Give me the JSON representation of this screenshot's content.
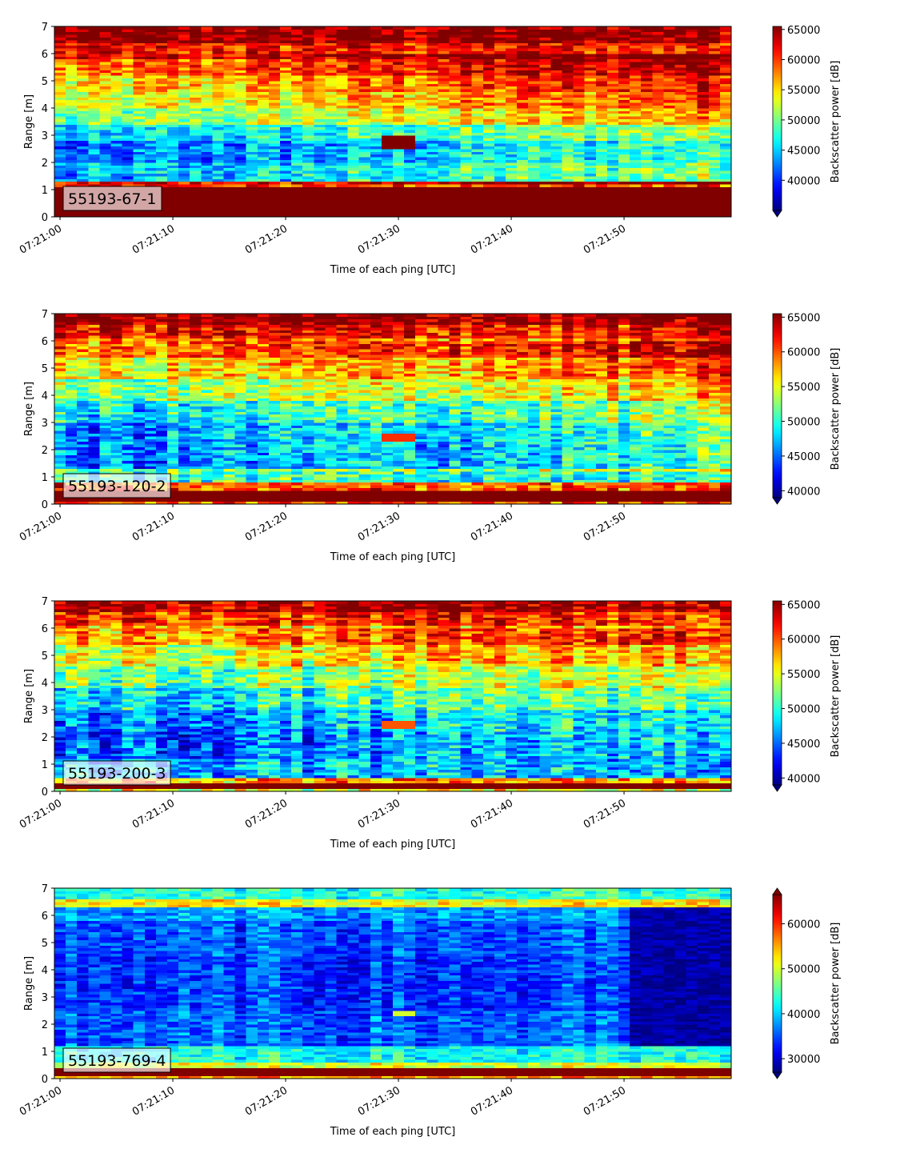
{
  "figure": {
    "background": "#ffffff"
  },
  "chart_data": [
    {
      "type": "heatmap",
      "label": "55193-67-1",
      "xlabel": "Time of each ping [UTC]",
      "ylabel": "Range [m]",
      "xticks": [
        "07:21:00",
        "07:21:10",
        "07:21:20",
        "07:21:30",
        "07:21:40",
        "07:21:50"
      ],
      "yticks": [
        0,
        1,
        2,
        3,
        4,
        5,
        6,
        7
      ],
      "ylim": [
        0,
        7
      ],
      "xlim_seconds": [
        -0.5,
        59.5
      ],
      "colorbar": {
        "label": "Backscatter power [dB]",
        "min": 35000,
        "max": 65500,
        "ticks": [
          40000,
          45000,
          50000,
          55000,
          60000,
          65000
        ],
        "extend": "min"
      },
      "profile": {
        "description": "strong near-surface band 0.2-1.1 m, low values 1.3-3.3 m in first half, rising to high values near 6-7 m",
        "rows_by_range_m": [
          [
            0.0,
            0.2,
            65500
          ],
          [
            0.2,
            1.1,
            65500
          ],
          [
            1.1,
            1.3,
            60000
          ],
          [
            1.3,
            2.0,
            43000
          ],
          [
            2.0,
            2.8,
            41000
          ],
          [
            2.8,
            3.4,
            44000
          ],
          [
            3.4,
            4.0,
            49000
          ],
          [
            4.0,
            4.6,
            52000
          ],
          [
            4.6,
            5.2,
            54000
          ],
          [
            5.2,
            5.8,
            57000
          ],
          [
            5.8,
            6.4,
            61000
          ],
          [
            6.4,
            7.0,
            65000
          ]
        ],
        "trend_late_half": 8000,
        "anomaly": {
          "t_start": 29,
          "t_end": 32,
          "r_start": 2.55,
          "r_end": 3.0,
          "value": 65500
        }
      }
    },
    {
      "type": "heatmap",
      "label": "55193-120-2",
      "xlabel": "Time of each ping [UTC]",
      "ylabel": "Range [m]",
      "xticks": [
        "07:21:00",
        "07:21:10",
        "07:21:20",
        "07:21:30",
        "07:21:40",
        "07:21:50"
      ],
      "yticks": [
        0,
        1,
        2,
        3,
        4,
        5,
        6,
        7
      ],
      "ylim": [
        0,
        7
      ],
      "xlim_seconds": [
        -0.5,
        59.5
      ],
      "colorbar": {
        "label": "Backscatter power [dB]",
        "min": 39000,
        "max": 65500,
        "ticks": [
          40000,
          45000,
          50000,
          55000,
          60000,
          65000
        ],
        "extend": "min"
      },
      "profile": {
        "rows_by_range_m": [
          [
            0.0,
            0.1,
            60000
          ],
          [
            0.1,
            0.55,
            65500
          ],
          [
            0.55,
            0.8,
            60000
          ],
          [
            0.8,
            1.3,
            50000
          ],
          [
            1.3,
            2.2,
            45000
          ],
          [
            2.2,
            3.0,
            45500
          ],
          [
            3.0,
            3.8,
            48000
          ],
          [
            3.8,
            4.6,
            52000
          ],
          [
            4.6,
            5.4,
            55000
          ],
          [
            5.4,
            6.1,
            58500
          ],
          [
            6.1,
            6.6,
            62000
          ],
          [
            6.6,
            7.0,
            65000
          ]
        ],
        "trend_late_half": 5000,
        "anomaly": {
          "t_start": 29,
          "t_end": 32,
          "r_start": 2.35,
          "r_end": 2.65,
          "value": 61000
        }
      }
    },
    {
      "type": "heatmap",
      "label": "55193-200-3",
      "xlabel": "Time of each ping [UTC]",
      "ylabel": "Range [m]",
      "xticks": [
        "07:21:00",
        "07:21:10",
        "07:21:20",
        "07:21:30",
        "07:21:40",
        "07:21:50"
      ],
      "yticks": [
        0,
        1,
        2,
        3,
        4,
        5,
        6,
        7
      ],
      "ylim": [
        0,
        7
      ],
      "xlim_seconds": [
        -0.5,
        59.5
      ],
      "colorbar": {
        "label": "Backscatter power [dB]",
        "min": 39000,
        "max": 65500,
        "ticks": [
          40000,
          45000,
          50000,
          55000,
          60000,
          65000
        ],
        "extend": "min"
      },
      "profile": {
        "rows_by_range_m": [
          [
            0.0,
            0.1,
            55000
          ],
          [
            0.1,
            0.35,
            65500
          ],
          [
            0.35,
            0.55,
            58000
          ],
          [
            0.55,
            1.2,
            47000
          ],
          [
            1.2,
            2.2,
            44000
          ],
          [
            2.2,
            3.0,
            45000
          ],
          [
            3.0,
            3.8,
            48000
          ],
          [
            3.8,
            4.6,
            51000
          ],
          [
            4.6,
            5.4,
            54000
          ],
          [
            5.4,
            6.1,
            57500
          ],
          [
            6.1,
            6.6,
            61000
          ],
          [
            6.6,
            7.0,
            64500
          ]
        ],
        "trend_late_half": 4500,
        "anomaly": {
          "t_start": 29,
          "t_end": 32,
          "r_start": 2.35,
          "r_end": 2.6,
          "value": 60000
        }
      }
    },
    {
      "type": "heatmap",
      "label": "55193-769-4",
      "xlabel": "Time of each ping [UTC]",
      "ylabel": "Range [m]",
      "xticks": [
        "07:21:00",
        "07:21:10",
        "07:21:20",
        "07:21:30",
        "07:21:40",
        "07:21:50"
      ],
      "yticks": [
        0,
        1,
        2,
        3,
        4,
        5,
        6,
        7
      ],
      "ylim": [
        0,
        7
      ],
      "xlim_seconds": [
        -0.5,
        59.5
      ],
      "colorbar": {
        "label": "Backscatter power [dB]",
        "min": 27000,
        "max": 66500,
        "ticks": [
          30000,
          40000,
          50000,
          60000
        ],
        "extend": "both"
      },
      "profile": {
        "rows_by_range_m": [
          [
            0.0,
            0.1,
            55000
          ],
          [
            0.1,
            0.4,
            66500
          ],
          [
            0.4,
            0.65,
            50000
          ],
          [
            0.65,
            1.2,
            42000
          ],
          [
            1.2,
            2.5,
            35500
          ],
          [
            2.5,
            4.5,
            34000
          ],
          [
            4.5,
            5.8,
            35000
          ],
          [
            5.8,
            6.3,
            38000
          ],
          [
            6.3,
            6.6,
            52000
          ],
          [
            6.6,
            7.0,
            43000
          ]
        ],
        "trend_late_half": 0,
        "dark_region": {
          "t_start": 51,
          "r_start": 1.2,
          "r_end": 6.3,
          "value": 26500
        },
        "anomaly": {
          "t_start": 30,
          "t_end": 32,
          "r_start": 2.3,
          "r_end": 2.5,
          "value": 50000
        }
      }
    }
  ]
}
